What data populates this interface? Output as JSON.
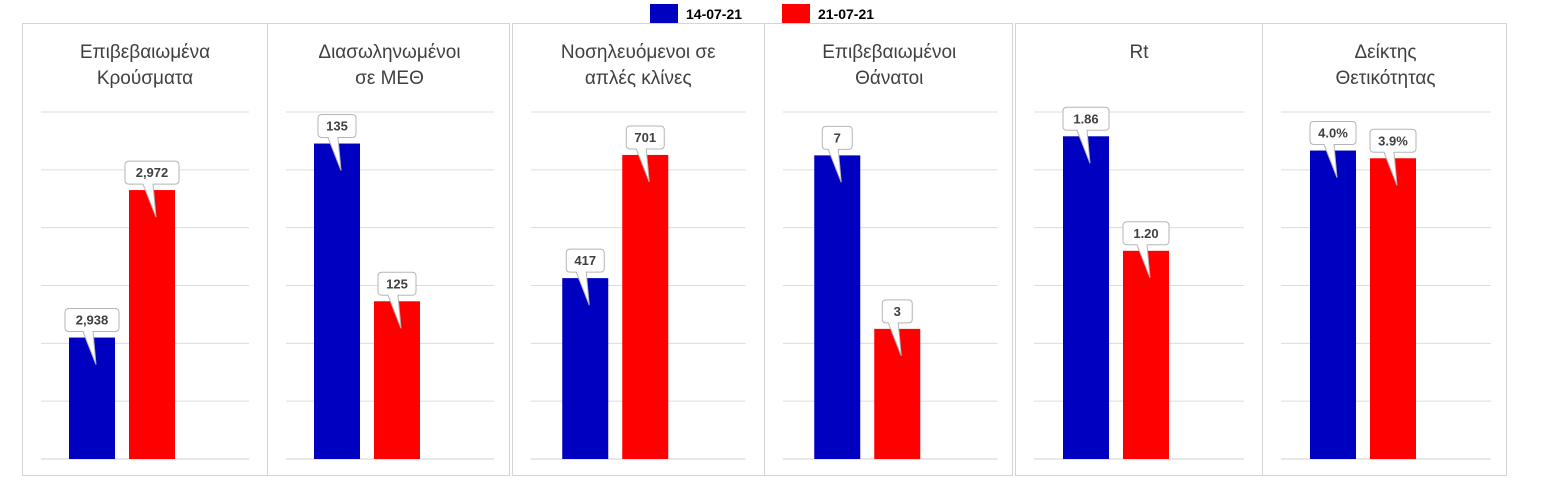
{
  "legend": {
    "series": [
      {
        "label": "14-07-21",
        "color": "#0000c0"
      },
      {
        "label": "21-07-21",
        "color": "#ff0000"
      }
    ]
  },
  "chart_data": [
    {
      "type": "bar",
      "title": "Επιβεβαιωμένα\nΚρούσματα",
      "categories": [
        "14-07-21",
        "21-07-21"
      ],
      "values": [
        2938,
        2972
      ],
      "data_labels": [
        "2,938",
        "2,972"
      ],
      "ylim": [
        2910,
        2990
      ],
      "grid": true
    },
    {
      "type": "bar",
      "title": "Διασωληνωμένοι\nσε ΜΕΘ",
      "categories": [
        "14-07-21",
        "21-07-21"
      ],
      "values": [
        135,
        125
      ],
      "data_labels": [
        "135",
        "125"
      ],
      "ylim": [
        115,
        137
      ],
      "grid": true
    },
    {
      "type": "bar",
      "title": "Νοσηλευόμενοι σε\nαπλές κλίνες",
      "categories": [
        "14-07-21",
        "21-07-21"
      ],
      "values": [
        417,
        701
      ],
      "data_labels": [
        "417",
        "701"
      ],
      "ylim": [
        0,
        800
      ],
      "grid": true
    },
    {
      "type": "bar",
      "title": "Επιβεβαιωμένοι\nΘάνατοι",
      "categories": [
        "14-07-21",
        "21-07-21"
      ],
      "values": [
        7,
        3
      ],
      "data_labels": [
        "7",
        "3"
      ],
      "ylim": [
        0,
        8
      ],
      "grid": true
    },
    {
      "type": "bar",
      "title": "Rt",
      "categories": [
        "14-07-21",
        "21-07-21"
      ],
      "values": [
        1.86,
        1.2
      ],
      "data_labels": [
        "1.86",
        "1.20"
      ],
      "ylim": [
        0,
        2.0
      ],
      "grid": true
    },
    {
      "type": "bar",
      "title": "Δείκτης\nΘετικότητας",
      "categories": [
        "14-07-21",
        "21-07-21"
      ],
      "values": [
        4.0,
        3.9
      ],
      "data_labels": [
        "4.0%",
        "3.9%"
      ],
      "ylim": [
        0,
        4.5
      ],
      "grid": true
    }
  ]
}
